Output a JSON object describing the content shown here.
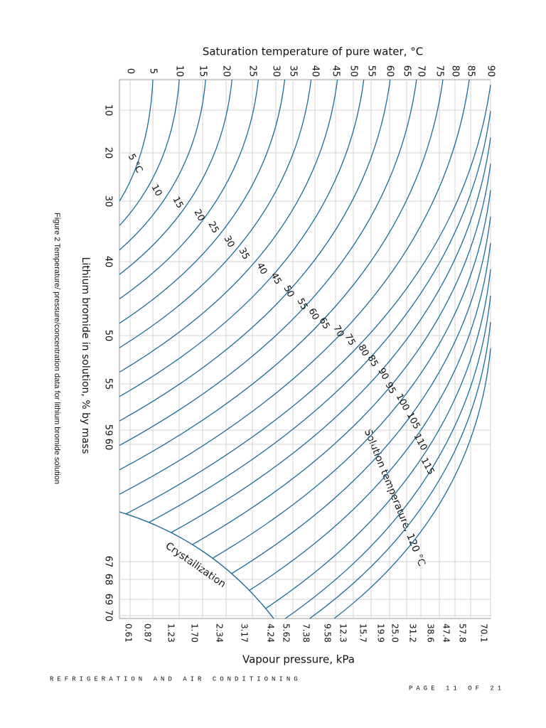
{
  "figure": {
    "top_axis": {
      "title": "Saturation temperature of pure water, °C",
      "ticks": [
        0,
        5,
        10,
        15,
        20,
        25,
        30,
        35,
        40,
        45,
        50,
        55,
        60,
        65,
        70,
        75,
        80,
        85,
        90
      ]
    },
    "bottom_axis": {
      "title": "Vapour pressure, kPa",
      "ticks": [
        "0.61",
        "0.87",
        "1.23",
        "1.70",
        "2.34",
        "3.17",
        "4.24",
        "5.62",
        "7.38",
        "9.58",
        "12.3",
        "15.7",
        "19.9",
        "25.0",
        "31.2",
        "38.6",
        "47.4",
        "57.8",
        "70.1"
      ]
    },
    "left_axis": {
      "title": "Lithium bromide in solution, % by mass",
      "ticks": [
        10,
        20,
        30,
        40,
        50,
        55,
        59,
        60,
        67,
        68,
        69,
        70
      ]
    },
    "curve_labels": [
      "5 °C",
      "10",
      "15",
      "20",
      "25",
      "30",
      "35",
      "40",
      "45",
      "50",
      "55",
      "60",
      "65",
      "70",
      "75",
      "80",
      "85",
      "90",
      "95",
      "100",
      "105",
      "110",
      "115"
    ],
    "solution_label": "Solution temperature, 120 °C",
    "crystallization_label": "Crystallization",
    "caption": "Figure 2 Temperature/ pressure/concentration data for lithium bromide solution"
  },
  "footer": {
    "left": "REFRIGERATION AND AIR CONDITIONING",
    "right": "PAGE 11 OF 21"
  }
}
